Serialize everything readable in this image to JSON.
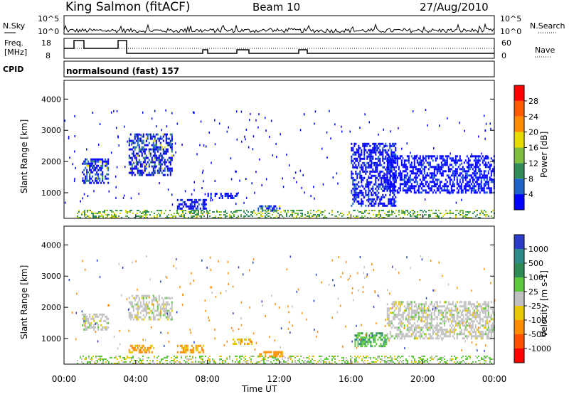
{
  "header": {
    "station": "King Salmon (fitACF)",
    "beam": "Beam 10",
    "date": "27/Aug/2010"
  },
  "status_panel": {
    "nsky_label": "N.Sky",
    "nsearch_label": "N.Search",
    "freq_label_1": "Freq.",
    "freq_label_2": "[MHz]",
    "nave_label": "Nave",
    "cpid_label": "CPID",
    "cpid_text": "normalsound (fast) 157",
    "noise_ticks_left": [
      "10^5",
      "10^0"
    ],
    "noise_ticks_right": [
      "10^5",
      "10^0"
    ],
    "freq_ticks": [
      "18",
      "8"
    ],
    "nave_ticks": [
      "60",
      "0"
    ]
  },
  "chart_data": [
    {
      "type": "heatmap",
      "name": "Power",
      "ylabel": "Slant Range [km]",
      "ylim": [
        180,
        4600
      ],
      "yticks": [
        "1000",
        "2000",
        "3000",
        "4000"
      ],
      "colorbar_label": "Power [dB]",
      "colorbar_ticks": [
        "4",
        "8",
        "12",
        "16",
        "20",
        "24",
        "28"
      ],
      "colors": [
        "#0000ff",
        "#1e64c8",
        "#328c5a",
        "#7dbe3c",
        "#e6dc00",
        "#ff8c00",
        "#ff5a00",
        "#ff0000"
      ],
      "echo_regions": [
        {
          "t": [
            1.0,
            2.5
          ],
          "r": [
            1300,
            2100
          ],
          "level": "mid"
        },
        {
          "t": [
            3.6,
            6.0
          ],
          "r": [
            1600,
            2900
          ],
          "level": "mid"
        },
        {
          "t": [
            6.3,
            7.9
          ],
          "r": [
            500,
            800
          ],
          "level": "low"
        },
        {
          "t": [
            8.0,
            9.6
          ],
          "r": [
            850,
            1000
          ],
          "level": "low"
        },
        {
          "t": [
            10.8,
            12.0
          ],
          "r": [
            400,
            600
          ],
          "level": "mid"
        },
        {
          "t": [
            16.0,
            18.5
          ],
          "r": [
            600,
            2600
          ],
          "level": "low"
        },
        {
          "t": [
            18.0,
            24.0
          ],
          "r": [
            1000,
            2200
          ],
          "level": "low"
        }
      ]
    },
    {
      "type": "heatmap",
      "name": "Velocity",
      "ylabel": "Slant Range [km]",
      "xlabel": "Time UT",
      "ylim": [
        180,
        4600
      ],
      "yticks": [
        "1000",
        "2000",
        "3000",
        "4000"
      ],
      "xticks": [
        "00:00",
        "04:00",
        "08:00",
        "12:00",
        "16:00",
        "20:00",
        "00:00"
      ],
      "colorbar_label": "Velocity [m s-1]",
      "colorbar_ticks": [
        "1000",
        "500",
        "100",
        "25",
        "-25",
        "-100",
        "-500",
        "-1000"
      ],
      "colors": [
        "#2a3cc8",
        "#2f8a8a",
        "#2e8b57",
        "#5dc83c",
        "#c0c0c0",
        "#e8c800",
        "#ff8c00",
        "#ff5000",
        "#ff0000"
      ],
      "echo_regions": [
        {
          "t": [
            1.0,
            2.5
          ],
          "r": [
            1300,
            1800
          ],
          "level": "ground"
        },
        {
          "t": [
            3.6,
            6.0
          ],
          "r": [
            1600,
            2400
          ],
          "level": "ground"
        },
        {
          "t": [
            3.6,
            5.0
          ],
          "r": [
            550,
            800
          ],
          "level": "negative"
        },
        {
          "t": [
            6.3,
            7.8
          ],
          "r": [
            550,
            800
          ],
          "level": "negative"
        },
        {
          "t": [
            9.4,
            10.5
          ],
          "r": [
            800,
            1000
          ],
          "level": "weak-negative"
        },
        {
          "t": [
            10.8,
            12.2
          ],
          "r": [
            400,
            600
          ],
          "level": "negative"
        },
        {
          "t": [
            16.2,
            18.0
          ],
          "r": [
            750,
            1200
          ],
          "level": "positive"
        },
        {
          "t": [
            18.0,
            24.0
          ],
          "r": [
            1000,
            2200
          ],
          "level": "ground"
        }
      ]
    }
  ],
  "colors": {
    "frame": "#000000",
    "background": "#ffffff"
  }
}
